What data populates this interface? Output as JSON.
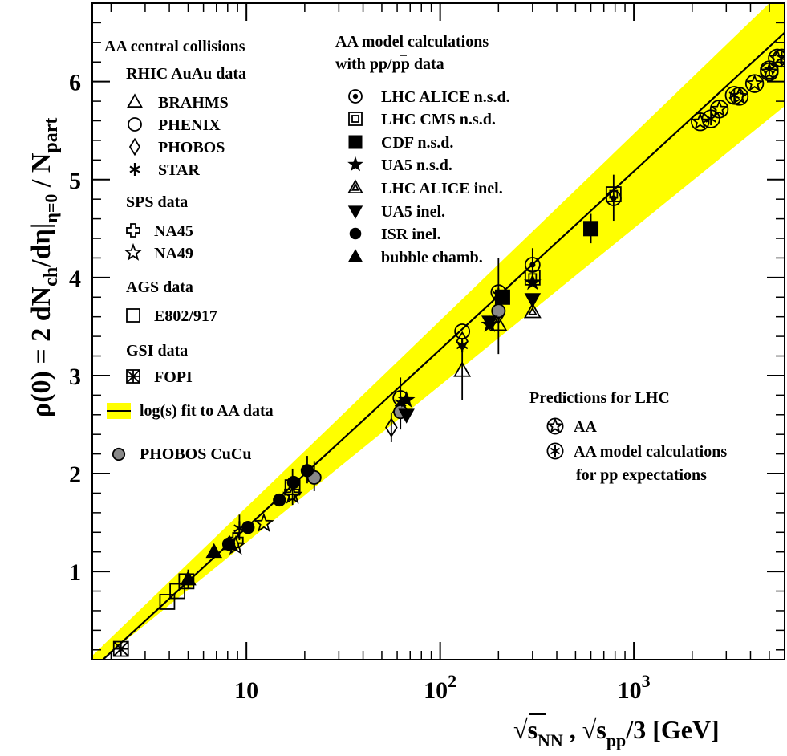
{
  "chart_data": {
    "type": "scatter",
    "x_scale": "log",
    "xlim": [
      1.6,
      6000
    ],
    "ylim": [
      0.1,
      6.8
    ],
    "grid": false,
    "ylabel": {
      "main": "ρ(0) = 2 dN",
      "sub1": "ch",
      "mid": "/dη|",
      "sub2": "η=0",
      "end": " / N",
      "sub3": "part"
    },
    "xlabel": {
      "sqrt": "√",
      "s1": "s",
      "sub1": "NN",
      "sep": " , ",
      "s2": "s",
      "sub2": "pp",
      "end": "/3  [GeV]"
    },
    "y_ticks": [
      "1",
      "2",
      "3",
      "4",
      "5",
      "6"
    ],
    "x_ticks": [
      {
        "label": "10",
        "value": 10
      },
      {
        "label": "10",
        "exp": "2",
        "value": 100
      },
      {
        "label": "10",
        "exp": "3",
        "value": 1000
      }
    ],
    "band": {
      "color": "#ffff00",
      "lower": [
        [
          1.6,
          0.02
        ],
        [
          6000,
          5.75
        ]
      ],
      "upper": [
        [
          1.6,
          0.14
        ],
        [
          6000,
          6.95
        ]
      ]
    },
    "fit_line": {
      "points": [
        [
          1.6,
          0.0
        ],
        [
          6000,
          6.5
        ]
      ],
      "color": "#000000"
    },
    "legend_left": {
      "title": "AA central collisions",
      "groups": [
        {
          "heading": "RHIC AuAu data",
          "items": [
            {
              "marker": "triangle-open",
              "label": "BRAHMS"
            },
            {
              "marker": "circle-open",
              "label": "PHENIX"
            },
            {
              "marker": "diamond-open",
              "label": "PHOBOS"
            },
            {
              "marker": "asterisk",
              "label": "STAR"
            }
          ]
        },
        {
          "heading": "SPS data",
          "items": [
            {
              "marker": "cross-open",
              "label": "NA45"
            },
            {
              "marker": "star-open",
              "label": "NA49"
            }
          ]
        },
        {
          "heading": "AGS data",
          "items": [
            {
              "marker": "square-open",
              "label": "E802/917"
            }
          ]
        },
        {
          "heading": "GSI data",
          "items": [
            {
              "marker": "square-x",
              "label": "FOPI"
            }
          ]
        }
      ],
      "fit_label": "log(s) fit to AA data",
      "cucu_label": "PHOBOS CuCu"
    },
    "legend_model": {
      "title1": "AA model calculations",
      "title2": "with pp/pp data",
      "items": [
        {
          "marker": "circle-dot",
          "label": "LHC ALICE n.s.d."
        },
        {
          "marker": "square-in-square",
          "label": "LHC CMS n.s.d."
        },
        {
          "marker": "square-filled",
          "label": "CDF n.s.d."
        },
        {
          "marker": "star-filled",
          "label": "UA5 n.s.d."
        },
        {
          "marker": "triangle-in-triangle",
          "label": "LHC ALICE inel."
        },
        {
          "marker": "triangle-down-filled",
          "label": "UA5 inel."
        },
        {
          "marker": "circle-filled",
          "label": "ISR inel."
        },
        {
          "marker": "triangle-filled",
          "label": "bubble chamb."
        }
      ]
    },
    "legend_lhc": {
      "title": "Predictions for LHC",
      "items": [
        {
          "marker": "star-in-circle",
          "label": "AA"
        },
        {
          "marker": "asterisk-in-circle",
          "label": "AA model calculations"
        }
      ],
      "line2": "for pp expectations"
    },
    "series": [
      {
        "name": "FOPI",
        "marker": "square-x",
        "points": [
          [
            2.25,
            0.21
          ]
        ]
      },
      {
        "name": "E802/917",
        "marker": "square-open",
        "points": [
          [
            3.9,
            0.69
          ],
          [
            4.4,
            0.8
          ],
          [
            4.9,
            0.9
          ],
          [
            17.3,
            1.86
          ]
        ]
      },
      {
        "name": "NA45",
        "marker": "cross-open",
        "points": [
          [
            8.8,
            1.32
          ],
          [
            17.2,
            1.81
          ]
        ]
      },
      {
        "name": "NA49",
        "marker": "star-open",
        "points": [
          [
            8.8,
            1.26
          ],
          [
            12.3,
            1.49
          ],
          [
            17.3,
            1.78
          ]
        ]
      },
      {
        "name": "BRAHMS",
        "marker": "triangle-open",
        "points": [
          [
            130,
            3.05
          ],
          [
            200,
            3.52
          ],
          [
            62.4,
            2.68
          ]
        ]
      },
      {
        "name": "PHENIX",
        "marker": "circle-open",
        "points": [
          [
            130,
            3.45
          ],
          [
            200,
            3.85
          ],
          [
            62.4,
            2.77
          ]
        ]
      },
      {
        "name": "PHOBOS",
        "marker": "diamond-open",
        "points": [
          [
            56,
            2.47
          ],
          [
            62.4,
            2.66
          ],
          [
            130,
            3.35
          ],
          [
            200,
            3.62
          ]
        ]
      },
      {
        "name": "STAR",
        "marker": "asterisk",
        "points": [
          [
            130,
            3.31
          ],
          [
            200,
            3.82
          ],
          [
            62.4,
            2.72
          ],
          [
            9.2,
            1.44
          ]
        ]
      },
      {
        "name": "PHOBOS CuCu",
        "marker": "circle-gray",
        "points": [
          [
            22.4,
            1.96
          ],
          [
            62.4,
            2.63
          ],
          [
            200,
            3.66
          ]
        ]
      },
      {
        "name": "LHC ALICE n.s.d.",
        "marker": "circle-dot",
        "points": [
          [
            300,
            4.13
          ],
          [
            786,
            4.81
          ]
        ]
      },
      {
        "name": "LHC CMS n.s.d.",
        "marker": "square-in-square",
        "points": [
          [
            300,
            4.0
          ],
          [
            786,
            4.85
          ]
        ]
      },
      {
        "name": "CDF n.s.d.",
        "marker": "square-filled",
        "points": [
          [
            210,
            3.8
          ],
          [
            600,
            4.5
          ]
        ]
      },
      {
        "name": "UA5 n.s.d.",
        "marker": "star-filled",
        "points": [
          [
            67,
            2.75
          ],
          [
            180,
            3.52
          ],
          [
            300,
            3.95
          ]
        ]
      },
      {
        "name": "LHC ALICE inel.",
        "marker": "triangle-in-triangle",
        "points": [
          [
            300,
            3.65
          ]
        ]
      },
      {
        "name": "UA5 inel.",
        "marker": "triangle-down-filled",
        "points": [
          [
            67,
            2.6
          ],
          [
            180,
            3.55
          ],
          [
            300,
            3.78
          ]
        ]
      },
      {
        "name": "ISR inel.",
        "marker": "circle-filled",
        "points": [
          [
            8.1,
            1.28
          ],
          [
            10.2,
            1.45
          ],
          [
            14.8,
            1.73
          ],
          [
            17.5,
            1.91
          ],
          [
            20.6,
            2.03
          ]
        ]
      },
      {
        "name": "bubble chamb.",
        "marker": "triangle-filled",
        "points": [
          [
            5.0,
            0.92
          ],
          [
            6.8,
            1.2
          ],
          [
            8.2,
            1.28
          ]
        ]
      },
      {
        "name": "AA",
        "marker": "star-in-circle",
        "points": [
          [
            2200,
            5.59
          ],
          [
            2760,
            5.72
          ],
          [
            3500,
            5.85
          ],
          [
            4200,
            5.98
          ],
          [
            5000,
            6.1
          ],
          [
            5500,
            6.24
          ]
        ]
      },
      {
        "name": "AA model calculations",
        "marker": "asterisk-in-circle",
        "points": [
          [
            2500,
            5.62
          ],
          [
            3300,
            5.86
          ],
          [
            5000,
            6.12
          ],
          [
            5800,
            6.24
          ]
        ]
      }
    ],
    "error_bars": [
      [
        130,
        2.75,
        3.35
      ],
      [
        200,
        3.22,
        3.82
      ],
      [
        200,
        3.55,
        4.2
      ],
      [
        56,
        2.32,
        2.62
      ],
      [
        62.4,
        2.45,
        2.98
      ],
      [
        300,
        3.92,
        4.3
      ],
      [
        786,
        4.58,
        5.05
      ],
      [
        600,
        4.35,
        4.65
      ],
      [
        17.3,
        1.68,
        2.05
      ],
      [
        20.6,
        1.9,
        2.18
      ],
      [
        9.2,
        1.32,
        1.58
      ],
      [
        5.0,
        0.82,
        1.02
      ],
      [
        22.4,
        1.82,
        2.12
      ]
    ]
  }
}
